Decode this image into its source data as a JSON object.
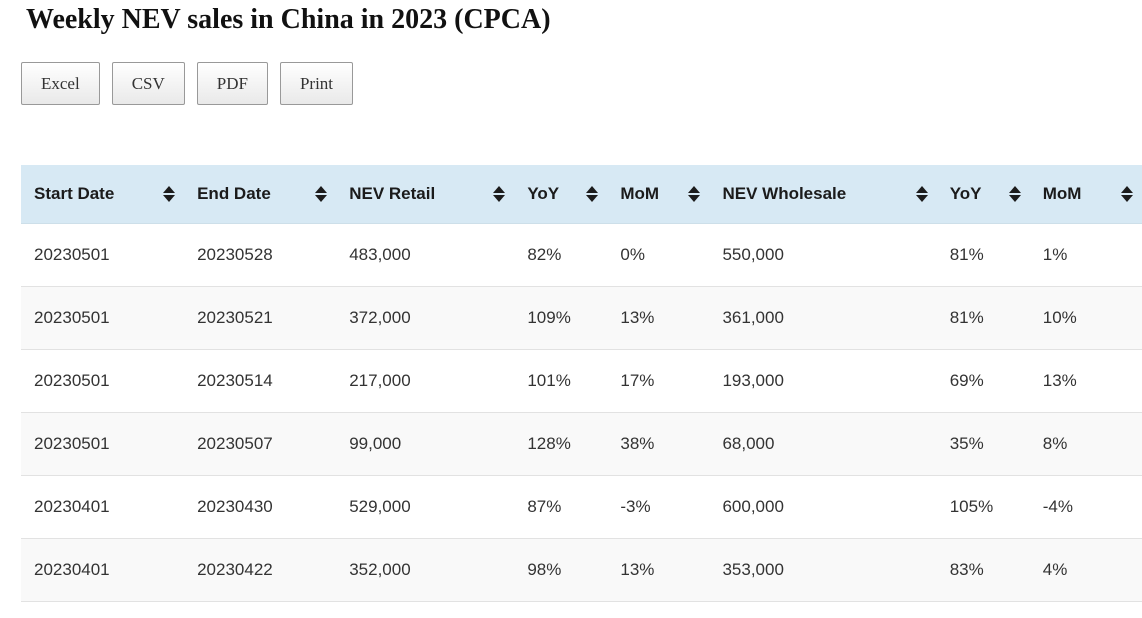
{
  "page": {
    "title": "Weekly NEV sales in China in 2023 (CPCA)"
  },
  "toolbar": {
    "buttons": [
      {
        "label": "Excel"
      },
      {
        "label": "CSV"
      },
      {
        "label": "PDF"
      },
      {
        "label": "Print"
      }
    ]
  },
  "table": {
    "columns": [
      {
        "label": "Start Date",
        "sortable": true
      },
      {
        "label": "End Date",
        "sortable": true
      },
      {
        "label": "NEV Retail",
        "sortable": true
      },
      {
        "label": "YoY",
        "sortable": true
      },
      {
        "label": "MoM",
        "sortable": true
      },
      {
        "label": "NEV Wholesale",
        "sortable": true
      },
      {
        "label": "YoY",
        "sortable": true
      },
      {
        "label": "MoM",
        "sortable": true
      }
    ],
    "rows": [
      [
        "20230501",
        "20230528",
        "483,000",
        "82%",
        "0%",
        "550,000",
        "81%",
        "1%"
      ],
      [
        "20230501",
        "20230521",
        "372,000",
        "109%",
        "13%",
        "361,000",
        "81%",
        "10%"
      ],
      [
        "20230501",
        "20230514",
        "217,000",
        "101%",
        "17%",
        "193,000",
        "69%",
        "13%"
      ],
      [
        "20230501",
        "20230507",
        "99,000",
        "128%",
        "38%",
        "68,000",
        "35%",
        "8%"
      ],
      [
        "20230401",
        "20230430",
        "529,000",
        "87%",
        "-3%",
        "600,000",
        "105%",
        "-4%"
      ],
      [
        "20230401",
        "20230422",
        "352,000",
        "98%",
        "13%",
        "353,000",
        "83%",
        "4%"
      ]
    ]
  },
  "colors": {
    "header_bg": "#d7e9f4",
    "stripe_bg": "#f9f9f9",
    "row_border": "#e2e2e2",
    "body_text": "#333333",
    "header_text": "#1b1b1b",
    "button_border": "#999999"
  }
}
